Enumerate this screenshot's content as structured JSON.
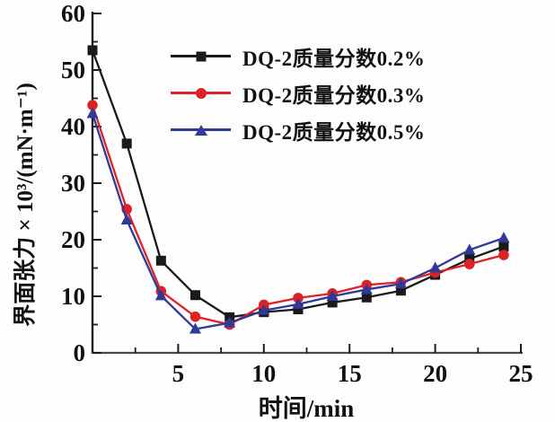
{
  "chart_data": {
    "type": "line",
    "title": "",
    "xlabel": "时间/min",
    "ylabel": "界面张力 × 10³/(mN·m⁻¹)",
    "xlim": [
      0,
      25
    ],
    "ylim": [
      0,
      60
    ],
    "x_major_ticks": [
      5,
      10,
      15,
      20,
      25
    ],
    "x_minor_ticks": [
      2.5,
      7.5,
      12.5,
      17.5,
      22.5
    ],
    "y_major_ticks": [
      0,
      10,
      20,
      30,
      40,
      50,
      60
    ],
    "y_minor_ticks": [
      5,
      15,
      25,
      35,
      45,
      55
    ],
    "grid": false,
    "legend_position": "upper-center-inside",
    "x": [
      0,
      2,
      4,
      6,
      8,
      10,
      12,
      14,
      16,
      18,
      20,
      22,
      24
    ],
    "series": [
      {
        "name": "DQ-2质量分数0.2%",
        "marker": "square",
        "color": "#1a1a1a",
        "values": [
          53.5,
          37.0,
          16.3,
          10.2,
          6.3,
          7.2,
          7.7,
          8.9,
          9.8,
          11.0,
          13.8,
          16.6,
          18.8
        ]
      },
      {
        "name": "DQ-2质量分数0.3%",
        "marker": "circle",
        "color": "#dd2127",
        "values": [
          43.8,
          25.4,
          10.9,
          6.4,
          5.0,
          8.5,
          9.7,
          10.5,
          12.0,
          12.5,
          14.2,
          15.7,
          17.3
        ]
      },
      {
        "name": "DQ-2质量分数0.5%",
        "marker": "triangle",
        "color": "#2e3a96",
        "values": [
          42.3,
          23.5,
          10.1,
          4.2,
          5.3,
          7.5,
          8.6,
          10.0,
          11.2,
          12.2,
          15.0,
          18.2,
          20.3
        ]
      }
    ],
    "axis_color": "#1c1c1c",
    "tick_label_color": "#111111"
  }
}
